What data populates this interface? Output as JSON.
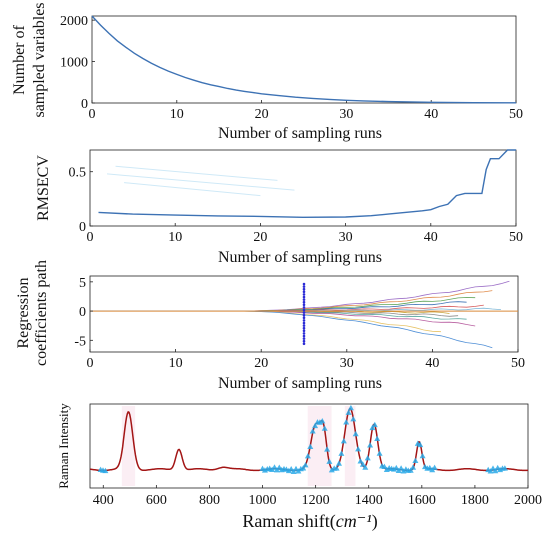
{
  "chart_data": [
    {
      "type": "line",
      "xlabel": "Number of sampling runs",
      "ylabel": [
        "Number of",
        "sampled variables"
      ],
      "xlim": [
        0,
        50
      ],
      "ylim": [
        0,
        2100
      ],
      "xticks": [
        0,
        10,
        20,
        30,
        40,
        50
      ],
      "yticks": [
        0,
        1000,
        2000
      ],
      "grid": false,
      "series": [
        {
          "color": "#3d72b4",
          "x": [
            0,
            1,
            2,
            3,
            4,
            5,
            6,
            7,
            8,
            9,
            10,
            11,
            12,
            13,
            14,
            15,
            16,
            17,
            18,
            19,
            20,
            22,
            24,
            26,
            28,
            30,
            32,
            35,
            40,
            45,
            50
          ],
          "y": [
            2100,
            1880,
            1680,
            1500,
            1345,
            1200,
            1075,
            960,
            860,
            770,
            690,
            615,
            550,
            490,
            440,
            395,
            350,
            312,
            280,
            250,
            222,
            178,
            140,
            110,
            86,
            66,
            50,
            33,
            16,
            8,
            5
          ]
        }
      ]
    },
    {
      "type": "line",
      "xlabel": "Number of sampling runs",
      "ylabel": [
        "RMSECV"
      ],
      "xlim": [
        0,
        50
      ],
      "ylim": [
        0,
        0.7
      ],
      "xticks": [
        0,
        10,
        20,
        30,
        40,
        50
      ],
      "yticks": [
        0,
        0.5
      ],
      "grid": false,
      "series": [
        {
          "color": "#3d72b4",
          "x": [
            1,
            5,
            10,
            15,
            20,
            25,
            30,
            33,
            35,
            37,
            39,
            40,
            41,
            42,
            43,
            44,
            45,
            46,
            46.5,
            47,
            48,
            49,
            50
          ],
          "y": [
            0.125,
            0.11,
            0.1,
            0.093,
            0.088,
            0.08,
            0.083,
            0.095,
            0.11,
            0.125,
            0.14,
            0.15,
            0.18,
            0.2,
            0.28,
            0.3,
            0.3,
            0.3,
            0.52,
            0.62,
            0.62,
            0.7,
            0.7
          ]
        }
      ]
    },
    {
      "type": "line",
      "xlabel": "Number of sampling runs",
      "ylabel": [
        "Regression",
        "coefficients path"
      ],
      "xlim": [
        0,
        50
      ],
      "ylim": [
        -7,
        6
      ],
      "xticks": [
        0,
        10,
        20,
        30,
        40,
        50
      ],
      "yticks": [
        -5,
        0,
        5
      ],
      "marker_line_x": 25,
      "grid": false,
      "path_color_list": [
        "#9c6fc7",
        "#e08b4a",
        "#61a55a",
        "#3d72b4",
        "#d65a5a",
        "#7fb8d8",
        "#c9a43b",
        "#8a8a8a",
        "#5aa8a0",
        "#b85fa0",
        "#e7c46a",
        "#4f8fd6"
      ],
      "paths_final": [
        5,
        3.6,
        2.4,
        1.6,
        0.9,
        0.4,
        -0.3,
        -0.8,
        -1.5,
        -2.4,
        -3.6,
        -6.3
      ],
      "paths_end_x": [
        49,
        47,
        45,
        44,
        46,
        48,
        42,
        43,
        44,
        45,
        41,
        47
      ]
    },
    {
      "type": "line",
      "xlabel": "Raman shift(cm⁻¹)",
      "xlabel_main": "Raman shift(",
      "xlabel_unit": "cm⁻¹",
      "xlabel_close": ")",
      "ylabel": [
        "Raman Intensity"
      ],
      "xlim": [
        350,
        2000
      ],
      "xticks": [
        400,
        600,
        800,
        1000,
        1200,
        1400,
        1600,
        1800,
        2000
      ],
      "ylim": [
        0,
        1
      ],
      "baseline": 0.12,
      "peaks": [
        {
          "center": 495,
          "height": 0.82,
          "width": 16
        },
        {
          "center": 685,
          "height": 0.3,
          "width": 12
        },
        {
          "center": 850,
          "height": 0.04,
          "width": 20
        },
        {
          "center": 1200,
          "height": 0.62,
          "width": 18
        },
        {
          "center": 1230,
          "height": 0.5,
          "width": 12
        },
        {
          "center": 1330,
          "height": 0.86,
          "width": 20
        },
        {
          "center": 1420,
          "height": 0.66,
          "width": 14
        },
        {
          "center": 1590,
          "height": 0.4,
          "width": 10
        }
      ],
      "series": [
        {
          "name": "",
          "color": "#a31515"
        },
        {
          "name": "",
          "color": "#2aa9e8",
          "marker": "triangle",
          "ranges": [
            [
              390,
              410
            ],
            [
              1000,
              1650
            ],
            [
              1850,
              1920
            ]
          ]
        }
      ],
      "highlight_color": "#f7d9e6"
    }
  ]
}
